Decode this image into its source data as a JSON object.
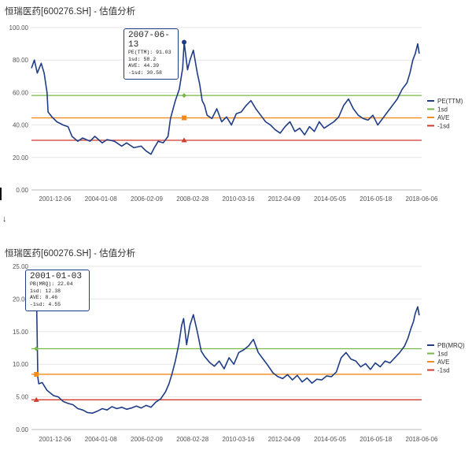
{
  "arrow_glyph": "↓",
  "colors": {
    "main": "#1f3d85",
    "sd_plus": "#7ab648",
    "ave": "#f28a1e",
    "sd_minus": "#d13b2a",
    "grid": "#e6e6e6"
  },
  "chart_data": [
    {
      "type": "line",
      "title": "恒瑞医药[600276.SH] - 估值分析",
      "ylim": [
        0,
        100
      ],
      "y_ticks": [
        "0.00",
        "20.00",
        "40.00",
        "60.00",
        "80.00",
        "100.00"
      ],
      "x_ticks": [
        "2001-12-06",
        "2004-01-08",
        "2006-02-09",
        "2008-02-28",
        "2010-03-16",
        "2012-04-09",
        "2014-05-05",
        "2016-05-18",
        "2018-06-06"
      ],
      "series": [
        {
          "name": "PE(TTM)",
          "points": [
            [
              0,
              75
            ],
            [
              0.6,
              80
            ],
            [
              1.2,
              72
            ],
            [
              2,
              78
            ],
            [
              2.6,
              72
            ],
            [
              3.2,
              60
            ],
            [
              3.4,
              48
            ],
            [
              4.2,
              45
            ],
            [
              5.2,
              42
            ],
            [
              6.5,
              40
            ],
            [
              7.5,
              39
            ],
            [
              8.3,
              33
            ],
            [
              9.5,
              30
            ],
            [
              10.5,
              32
            ],
            [
              12,
              30
            ],
            [
              13,
              33
            ],
            [
              14.5,
              29
            ],
            [
              15.5,
              31
            ],
            [
              17,
              30
            ],
            [
              18.5,
              27
            ],
            [
              19.5,
              29
            ],
            [
              21,
              26
            ],
            [
              22.5,
              27
            ],
            [
              23.5,
              24
            ],
            [
              24.5,
              22
            ],
            [
              25.2,
              26
            ],
            [
              26,
              30
            ],
            [
              27,
              29
            ],
            [
              28,
              33
            ],
            [
              28.5,
              44
            ],
            [
              29.5,
              55
            ],
            [
              30.3,
              62
            ],
            [
              31,
              75
            ],
            [
              31.3,
              91
            ],
            [
              32,
              74
            ],
            [
              32.5,
              80
            ],
            [
              33.2,
              86
            ],
            [
              34,
              72
            ],
            [
              34.5,
              65
            ],
            [
              35,
              55
            ],
            [
              35.5,
              52
            ],
            [
              36,
              46
            ],
            [
              37,
              44
            ],
            [
              38,
              50
            ],
            [
              39,
              42
            ],
            [
              40,
              45
            ],
            [
              41,
              40
            ],
            [
              42,
              47
            ],
            [
              43,
              48
            ],
            [
              44,
              52
            ],
            [
              45,
              55
            ],
            [
              46,
              50
            ],
            [
              47,
              46
            ],
            [
              48,
              42
            ],
            [
              49,
              40
            ],
            [
              50,
              37
            ],
            [
              51,
              35
            ],
            [
              52,
              39
            ],
            [
              53,
              42
            ],
            [
              54,
              36
            ],
            [
              55,
              38
            ],
            [
              56,
              34
            ],
            [
              57,
              39
            ],
            [
              58,
              36
            ],
            [
              59,
              42
            ],
            [
              60,
              38
            ],
            [
              61,
              40
            ],
            [
              62,
              42
            ],
            [
              63,
              45
            ],
            [
              64,
              52
            ],
            [
              65,
              56
            ],
            [
              66,
              50
            ],
            [
              67,
              46
            ],
            [
              68,
              44
            ],
            [
              69,
              43
            ],
            [
              70,
              46
            ],
            [
              71,
              40
            ],
            [
              72,
              44
            ],
            [
              73,
              48
            ],
            [
              74,
              52
            ],
            [
              75,
              56
            ],
            [
              76,
              62
            ],
            [
              77,
              66
            ],
            [
              77.6,
              72
            ],
            [
              78.2,
              80
            ],
            [
              78.7,
              84
            ],
            [
              79.2,
              90
            ],
            [
              79.5,
              84
            ]
          ]
        },
        {
          "name": "1sd",
          "values": [
            58.2
          ]
        },
        {
          "name": "AVE",
          "values": [
            44.39
          ]
        },
        {
          "name": "-1sd",
          "values": [
            30.58
          ]
        }
      ],
      "legend": [
        "PE(TTM)",
        "1sd",
        "AVE",
        "-1sd"
      ],
      "legend_position": "right",
      "marker_x": 31.3,
      "tooltip": {
        "date": "2007-06-13",
        "lines": [
          "PE(TTM): 91.03",
          "1sd: 58.2",
          "AVE: 44.39",
          "-1sd: 30.58"
        ]
      },
      "grid": true
    },
    {
      "type": "line",
      "title": "恒瑞医药[600276.SH] - 估值分析",
      "ylim": [
        0,
        25
      ],
      "y_ticks": [
        "0.00",
        "5.00",
        "10.00",
        "15.00",
        "20.00",
        "25.00"
      ],
      "x_ticks": [
        "2001-12-06",
        "2004-01-08",
        "2006-02-09",
        "2008-02-28",
        "2010-03-16",
        "2012-04-09",
        "2014-05-05",
        "2016-05-18",
        "2018-06-06"
      ],
      "series": [
        {
          "name": "PB(MRQ)",
          "points": [
            [
              0,
              20.5
            ],
            [
              0.3,
              22
            ],
            [
              0.6,
              21
            ],
            [
              1,
              22.04
            ],
            [
              1.3,
              8
            ],
            [
              1.5,
              7
            ],
            [
              2.2,
              7.2
            ],
            [
              3.2,
              6
            ],
            [
              4.5,
              5.2
            ],
            [
              5.5,
              5
            ],
            [
              6.5,
              4.3
            ],
            [
              7.5,
              4
            ],
            [
              8.5,
              3.8
            ],
            [
              9.5,
              3.2
            ],
            [
              10.5,
              3
            ],
            [
              11.5,
              2.6
            ],
            [
              12.5,
              2.5
            ],
            [
              13.5,
              2.8
            ],
            [
              14.5,
              3.2
            ],
            [
              15.5,
              3
            ],
            [
              16.5,
              3.5
            ],
            [
              17.5,
              3.2
            ],
            [
              18.5,
              3.4
            ],
            [
              19.5,
              3.1
            ],
            [
              20.5,
              3.3
            ],
            [
              21.5,
              3.6
            ],
            [
              22.5,
              3.3
            ],
            [
              23.5,
              3.7
            ],
            [
              24.5,
              3.4
            ],
            [
              25.5,
              4.2
            ],
            [
              26.5,
              4.7
            ],
            [
              27.5,
              5.8
            ],
            [
              28.2,
              7
            ],
            [
              28.8,
              8.5
            ],
            [
              29.5,
              10.5
            ],
            [
              30.2,
              13
            ],
            [
              30.8,
              16
            ],
            [
              31.2,
              17
            ],
            [
              31.8,
              13
            ],
            [
              32.5,
              16
            ],
            [
              33.2,
              17.6
            ],
            [
              34,
              15
            ],
            [
              34.8,
              12
            ],
            [
              35.5,
              11.2
            ],
            [
              36.5,
              10.3
            ],
            [
              37.5,
              9.7
            ],
            [
              38.5,
              10.5
            ],
            [
              39.5,
              9.3
            ],
            [
              40.5,
              11
            ],
            [
              41.5,
              10
            ],
            [
              42.5,
              11.8
            ],
            [
              43.5,
              12.2
            ],
            [
              44.5,
              12.8
            ],
            [
              45.5,
              13.8
            ],
            [
              46.5,
              11.8
            ],
            [
              47.5,
              10.8
            ],
            [
              48.5,
              9.8
            ],
            [
              49.5,
              8.7
            ],
            [
              50.5,
              8.1
            ],
            [
              51.5,
              7.8
            ],
            [
              52.5,
              8.4
            ],
            [
              53.5,
              7.6
            ],
            [
              54.5,
              8.3
            ],
            [
              55.5,
              7.3
            ],
            [
              56.5,
              7.9
            ],
            [
              57.5,
              7.1
            ],
            [
              58.5,
              7.7
            ],
            [
              59.5,
              7.6
            ],
            [
              60.5,
              8.2
            ],
            [
              61.5,
              8.1
            ],
            [
              62.5,
              8.8
            ],
            [
              63.5,
              11
            ],
            [
              64.5,
              11.8
            ],
            [
              65.5,
              10.8
            ],
            [
              66.5,
              10.5
            ],
            [
              67.5,
              9.6
            ],
            [
              68.5,
              10.1
            ],
            [
              69.5,
              9.2
            ],
            [
              70.5,
              10.2
            ],
            [
              71.5,
              9.6
            ],
            [
              72.5,
              10.5
            ],
            [
              73.5,
              10.2
            ],
            [
              74.5,
              11
            ],
            [
              75.5,
              11.8
            ],
            [
              76.5,
              12.8
            ],
            [
              77.2,
              14
            ],
            [
              77.8,
              15.5
            ],
            [
              78.3,
              16.5
            ],
            [
              78.7,
              17.8
            ],
            [
              79.2,
              18.8
            ],
            [
              79.5,
              17.5
            ]
          ]
        },
        {
          "name": "1sd",
          "values": [
            12.38
          ]
        },
        {
          "name": "AVE",
          "values": [
            8.46
          ]
        },
        {
          "name": "-1sd",
          "values": [
            4.55
          ]
        }
      ],
      "legend": [
        "PB(MRQ)",
        "1sd",
        "AVE",
        "-1sd"
      ],
      "legend_position": "right",
      "marker_x": 1,
      "tooltip": {
        "date": "2001-01-03",
        "lines": [
          "PB(MRQ): 22.04",
          "1sd: 12.38",
          "AVE: 8.46",
          "-1sd: 4.55"
        ]
      },
      "grid": true
    }
  ]
}
